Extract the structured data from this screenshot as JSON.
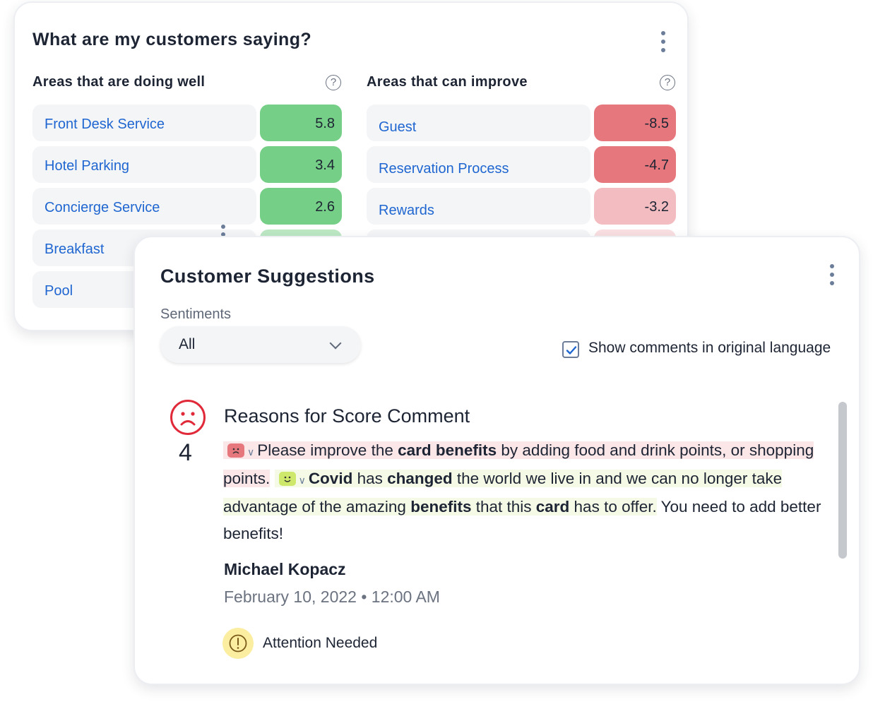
{
  "customers_card": {
    "title": "What are my customers saying?",
    "doing_well": {
      "heading": "Areas that are doing well",
      "items": [
        {
          "label": "Front Desk Service",
          "score": "5.8",
          "color": "#75cf86"
        },
        {
          "label": "Hotel Parking",
          "score": "3.4",
          "color": "#75cf86"
        },
        {
          "label": "Concierge Service",
          "score": "2.6",
          "color": "#75cf86"
        },
        {
          "label": "Breakfast",
          "score": "",
          "color": "#bde8c4"
        },
        {
          "label": "Pool",
          "score": "",
          "color": "#bde8c4"
        }
      ]
    },
    "can_improve": {
      "heading": "Areas that can improve",
      "items": [
        {
          "label": "Guest",
          "score": "-8.5",
          "color": "#e6787d"
        },
        {
          "label": "Reservation Process",
          "score": "-4.7",
          "color": "#e6787d"
        },
        {
          "label": "Rewards",
          "score": "-3.2",
          "color": "#f2bcc0"
        },
        {
          "label": "",
          "score": "",
          "color": "#f9dfe1"
        }
      ]
    }
  },
  "suggestions_card": {
    "title": "Customer Suggestions",
    "sentiments_label": "Sentiments",
    "sentiments_value": "All",
    "original_language_label": "Show comments in original language",
    "original_language_checked": true,
    "comment": {
      "title": "Reasons for Score Comment",
      "rating": "4",
      "rating_icon": "sad-face-icon",
      "segments": [
        {
          "sentiment": "negative",
          "parts": [
            {
              "t": "Please improve the "
            },
            {
              "t": "card benefits",
              "b": true
            },
            {
              "t": " by adding food and drink points, or shopping points."
            }
          ]
        },
        {
          "sentiment": "positive",
          "parts": [
            {
              "t": "Covid",
              "b": true
            },
            {
              "t": " has "
            },
            {
              "t": "changed",
              "b": true
            },
            {
              "t": " the world we live in and we can no longer take advantage of the amazing "
            },
            {
              "t": "benefits",
              "b": true
            },
            {
              "t": " that this "
            },
            {
              "t": "card",
              "b": true
            },
            {
              "t": " has to offer."
            }
          ]
        },
        {
          "sentiment": "neutral",
          "parts": [
            {
              "t": " You need to add better benefits!"
            }
          ]
        }
      ],
      "author": "Michael Kopacz",
      "date": "February 10, 2022 • 12:00 AM",
      "status": "Attention Needed"
    }
  },
  "colors": {
    "link": "#1f66d1",
    "negative": "#e6787d",
    "positive": "#75cf86",
    "attention": "#fbeea0"
  }
}
